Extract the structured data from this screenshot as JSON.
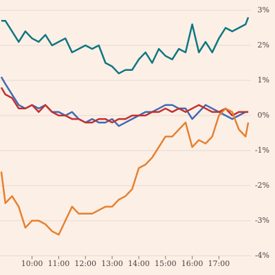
{
  "chart_data": {
    "type": "line",
    "x": [
      8.85,
      9.0,
      9.25,
      9.5,
      9.75,
      10.0,
      10.25,
      10.5,
      10.75,
      11.0,
      11.25,
      11.5,
      11.75,
      12.0,
      12.25,
      12.5,
      12.75,
      13.0,
      13.25,
      13.5,
      13.75,
      14.0,
      14.25,
      14.5,
      14.75,
      15.0,
      15.25,
      15.5,
      15.75,
      16.0,
      16.25,
      16.5,
      16.75,
      17.0,
      17.25,
      17.5,
      17.75,
      18.0,
      18.1
    ],
    "series": [
      {
        "color": "#0d7680",
        "values": [
          2.7,
          2.7,
          2.4,
          2.1,
          2.4,
          2.2,
          2.1,
          2.3,
          2.0,
          2.1,
          2.2,
          1.8,
          1.9,
          2.0,
          1.9,
          2.0,
          1.5,
          1.4,
          1.2,
          1.3,
          1.3,
          1.6,
          1.8,
          1.5,
          1.9,
          1.7,
          1.6,
          1.9,
          1.8,
          2.6,
          1.8,
          2.1,
          1.8,
          2.2,
          2.5,
          2.4,
          2.5,
          2.6,
          2.8
        ]
      },
      {
        "color": "#3f6ab3",
        "values": [
          1.1,
          0.9,
          0.6,
          0.3,
          0.2,
          0.3,
          0.2,
          0.3,
          0.1,
          0.1,
          0.0,
          0.1,
          -0.1,
          -0.2,
          -0.1,
          -0.2,
          -0.2,
          -0.1,
          -0.3,
          -0.2,
          -0.1,
          0.0,
          0.1,
          0.1,
          0.2,
          0.3,
          0.3,
          0.2,
          0.2,
          -0.1,
          0.1,
          0.3,
          0.2,
          0.1,
          0.0,
          -0.1,
          0.0,
          0.1,
          0.1
        ]
      },
      {
        "color": "#c1302e",
        "values": [
          0.8,
          0.6,
          0.5,
          0.2,
          0.2,
          0.3,
          0.1,
          0.3,
          0.1,
          0.0,
          0.0,
          -0.1,
          -0.1,
          -0.2,
          -0.2,
          -0.1,
          -0.1,
          -0.2,
          -0.1,
          -0.1,
          0.0,
          0.0,
          0.0,
          0.1,
          0.1,
          0.2,
          0.1,
          0.2,
          0.1,
          0.2,
          0.3,
          0.2,
          0.1,
          0.1,
          0.2,
          0.0,
          0.1,
          0.1,
          0.1
        ]
      },
      {
        "color": "#e5802f",
        "values": [
          -1.6,
          -2.5,
          -2.3,
          -2.6,
          -3.2,
          -3.0,
          -3.0,
          -3.1,
          -3.3,
          -3.4,
          -3.0,
          -2.6,
          -2.8,
          -2.8,
          -2.8,
          -2.7,
          -2.6,
          -2.6,
          -2.4,
          -2.3,
          -2.1,
          -1.5,
          -1.4,
          -1.2,
          -0.9,
          -0.6,
          -0.6,
          -0.4,
          -0.2,
          -0.9,
          -0.7,
          -0.8,
          -0.6,
          0.0,
          0.2,
          0.1,
          -0.4,
          -0.6,
          -0.2
        ]
      }
    ],
    "xlim": [
      8.8,
      18.2
    ],
    "xticks": [
      {
        "value": 10,
        "label": "10:00"
      },
      {
        "value": 11,
        "label": "11:00"
      },
      {
        "value": 12,
        "label": "12:00"
      },
      {
        "value": 13,
        "label": "13:00"
      },
      {
        "value": 14,
        "label": "14:00"
      },
      {
        "value": 15,
        "label": "15:00"
      },
      {
        "value": 16,
        "label": "16:00"
      },
      {
        "value": 17,
        "label": "17:00"
      }
    ],
    "ylim": [
      -4,
      3
    ],
    "yticks": [
      {
        "value": 3,
        "label": "3%"
      },
      {
        "value": 2,
        "label": "2%"
      },
      {
        "value": 1,
        "label": "1%"
      },
      {
        "value": 0,
        "label": "0%"
      },
      {
        "value": -1,
        "label": "-1%"
      },
      {
        "value": -2,
        "label": "-2%"
      },
      {
        "value": -3,
        "label": "-3%"
      },
      {
        "value": -4,
        "label": "-4%"
      }
    ],
    "grid": true
  }
}
